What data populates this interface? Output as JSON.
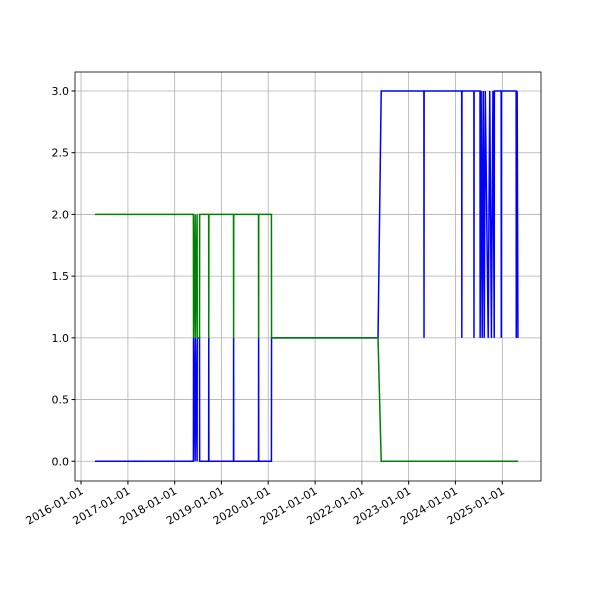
{
  "chart_data": {
    "type": "line",
    "x": [
      "2016-04-19",
      "2018-05-27",
      "2018-05-28",
      "2018-06-10",
      "2018-06-11",
      "2018-06-25",
      "2018-06-26",
      "2018-07-14",
      "2018-07-15",
      "2018-09-23",
      "2018-09-24",
      "2018-09-25",
      "2019-04-05",
      "2019-04-06",
      "2019-04-07",
      "2019-10-17",
      "2019-10-18",
      "2019-10-19",
      "2020-01-26",
      "2020-01-27",
      "2022-05-07",
      "2022-06-01",
      "2023-04-30",
      "2023-05-01",
      "2023-05-02",
      "2024-02-19",
      "2024-02-20",
      "2024-02-21",
      "2024-05-24",
      "2024-05-25",
      "2024-05-26",
      "2024-07-11",
      "2024-07-12",
      "2024-07-20",
      "2024-07-28",
      "2024-08-05",
      "2024-08-13",
      "2024-08-21",
      "2024-09-13",
      "2024-09-25",
      "2024-10-08",
      "2024-10-20",
      "2024-10-30",
      "2024-10-31",
      "2024-12-23",
      "2024-12-24",
      "2024-12-25",
      "2025-04-19",
      "2025-04-20",
      "2025-04-27",
      "2025-05-03"
    ],
    "series": [
      {
        "color": "#0000ff",
        "values": [
          0,
          0,
          1,
          0,
          1,
          0,
          1,
          1,
          0,
          0,
          1,
          0,
          0,
          1,
          0,
          0,
          1,
          0,
          0,
          1,
          1,
          3,
          3,
          1,
          3,
          3,
          1,
          3,
          3,
          1,
          3,
          3,
          1,
          3,
          1,
          3,
          1,
          3,
          1,
          3,
          1,
          3,
          1,
          3,
          3,
          1,
          3,
          3,
          1,
          3,
          1
        ]
      },
      {
        "color": "#008000",
        "values": [
          2,
          2,
          1,
          2,
          1,
          2,
          1,
          1,
          2,
          2,
          1,
          2,
          2,
          1,
          2,
          2,
          1,
          2,
          2,
          1,
          1,
          0,
          0,
          0,
          0,
          0,
          0,
          0,
          0,
          0,
          0,
          0,
          0,
          0,
          0,
          0,
          0,
          0,
          0,
          0,
          0,
          0,
          0,
          0,
          0,
          0,
          0,
          0,
          0,
          0,
          0
        ]
      }
    ],
    "xlim": [
      "2015-11-15",
      "2025-10-30"
    ],
    "xticks": [
      "2016-01-01",
      "2017-01-01",
      "2018-01-01",
      "2019-01-01",
      "2020-01-01",
      "2021-01-01",
      "2022-01-01",
      "2023-01-01",
      "2024-01-01",
      "2025-01-01"
    ],
    "ylim": [
      -0.16,
      3.154
    ],
    "yticks": [
      {
        "value": 0,
        "label": "0.0"
      },
      {
        "value": 0.5,
        "label": "0.5"
      },
      {
        "value": 1,
        "label": "1.0"
      },
      {
        "value": 1.5,
        "label": "1.5"
      },
      {
        "value": 2,
        "label": "2.0"
      },
      {
        "value": 2.5,
        "label": "2.5"
      },
      {
        "value": 3,
        "label": "3.0"
      }
    ],
    "grid": true
  }
}
